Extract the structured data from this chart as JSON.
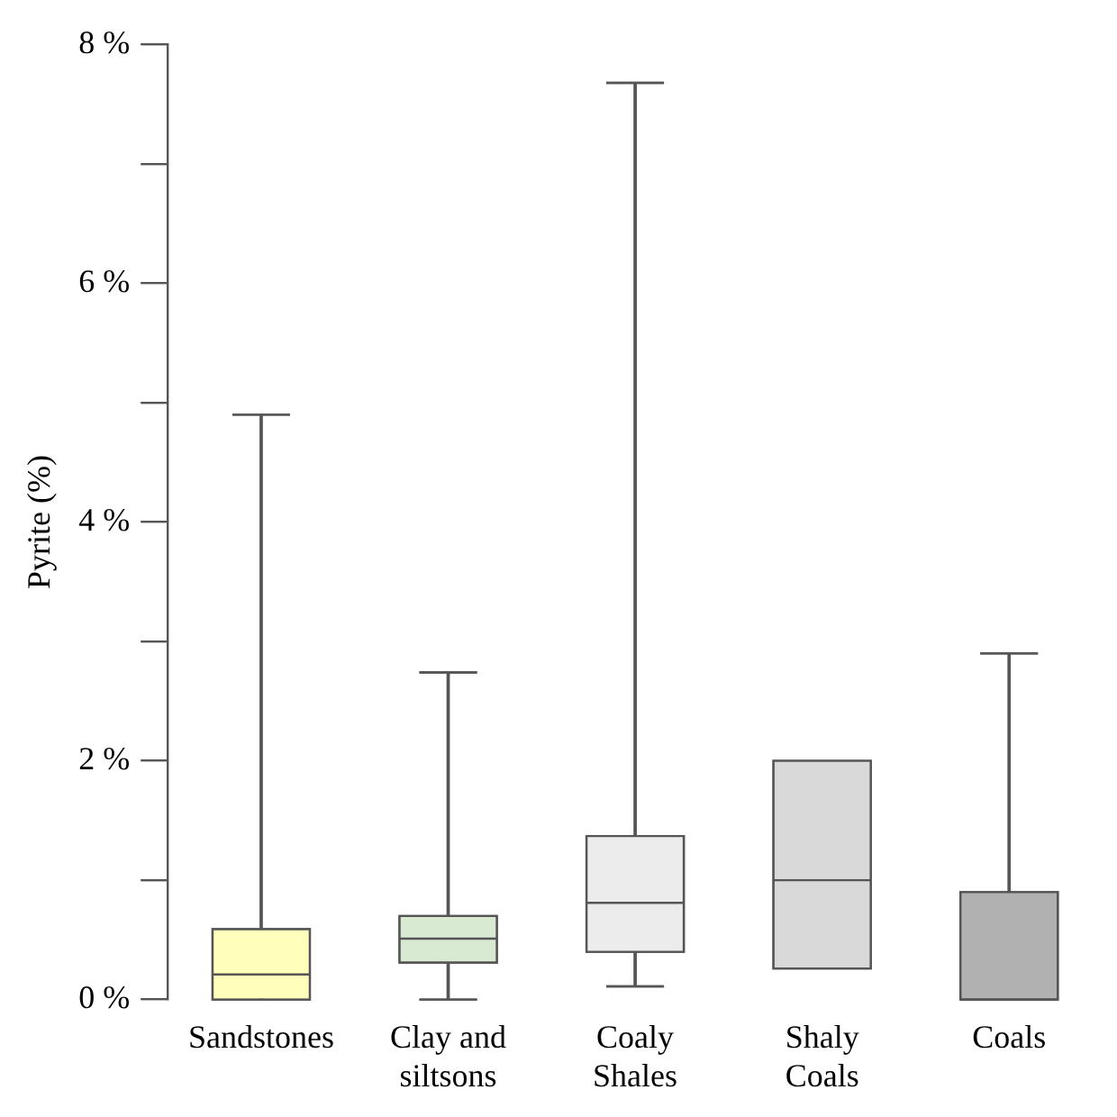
{
  "chart_data": {
    "type": "box",
    "ylabel": "Pyrite (%)",
    "categories": [
      "Sandstones",
      "Clay and siltsons",
      "Coaly Shales",
      "Shaly Coals",
      "Coals"
    ],
    "boxes": [
      {
        "low": 0,
        "q1": 0,
        "median": 0.21,
        "q3": 0.59,
        "high": 4.9
      },
      {
        "low": 0,
        "q1": 0.31,
        "median": 0.51,
        "q3": 0.7,
        "high": 2.74
      },
      {
        "low": 0.11,
        "q1": 0.4,
        "median": 0.81,
        "q3": 1.37,
        "high": 7.68
      },
      {
        "low": 0.26,
        "q1": 0.26,
        "median": 1.0,
        "q3": 2.0,
        "high": 2.0
      },
      {
        "low": 0,
        "q1": 0,
        "median": 0,
        "q3": 0.9,
        "high": 2.9
      }
    ],
    "colors": [
      "#ffffbb",
      "#d9ead3",
      "#ececec",
      "#d9d9d9",
      "#b1b1b1"
    ],
    "ylim": [
      0,
      8
    ],
    "yticks": [
      {
        "value": 0,
        "label": "0 %"
      },
      {
        "value": 1,
        "label": null
      },
      {
        "value": 2,
        "label": "2 %"
      },
      {
        "value": 3,
        "label": null
      },
      {
        "value": 4,
        "label": "4 %"
      },
      {
        "value": 5,
        "label": null
      },
      {
        "value": 6,
        "label": "6 %"
      },
      {
        "value": 7,
        "label": null
      },
      {
        "value": 8,
        "label": "8 %"
      }
    ],
    "grid": false,
    "legend": false
  }
}
